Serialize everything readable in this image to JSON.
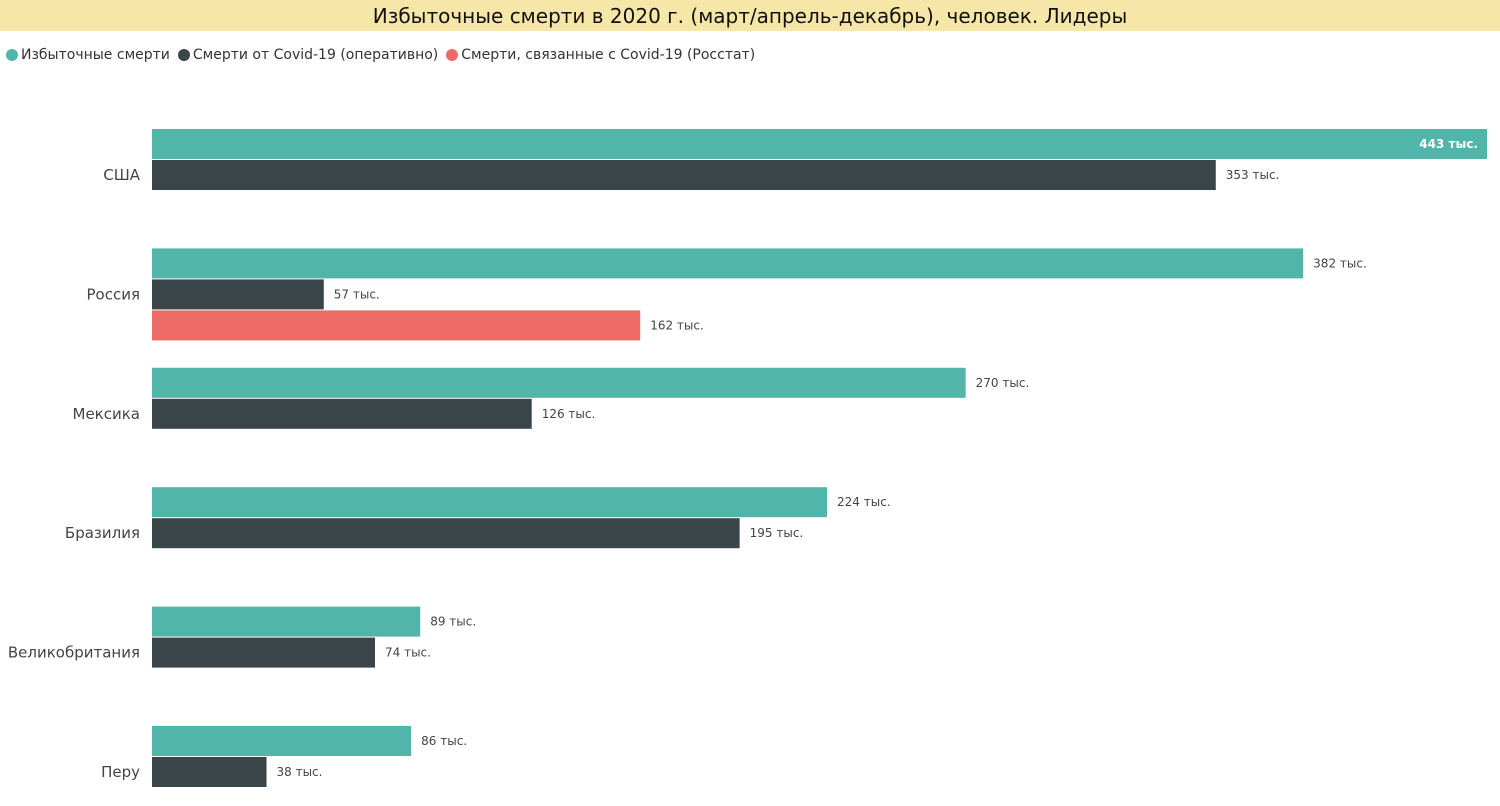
{
  "colors": {
    "excess": "#52b5aa",
    "covid_operational": "#394548",
    "covid_rosstat": "#ec6b65",
    "title_background": "#f6e6a8"
  },
  "chart_data": {
    "type": "bar",
    "orientation": "horizontal",
    "title": "Избыточные смерти в 2020 г. (март/апрель-декабрь), человек. Лидеры",
    "xlabel": "",
    "ylabel": "",
    "xlim": [
      0,
      443000
    ],
    "grid": false,
    "legend_position": "top-left",
    "categories": [
      "США",
      "Россия",
      "Мексика",
      "Бразилия",
      "Великобритания",
      "Перу"
    ],
    "series": [
      {
        "name": "Избыточные смерти",
        "color_key": "excess",
        "values": [
          443000,
          382000,
          270000,
          224000,
          89000,
          86000
        ],
        "labels": [
          "443 тыс.",
          "382 тыс.",
          "270 тыс.",
          "224 тыс.",
          "89 тыс.",
          "86 тыс."
        ]
      },
      {
        "name": "Смерти от Covid-19 (оперативно)",
        "color_key": "covid_operational",
        "values": [
          353000,
          57000,
          126000,
          195000,
          74000,
          38000
        ],
        "labels": [
          "353 тыс.",
          "57 тыс.",
          "126 тыс.",
          "195 тыс.",
          "74 тыс.",
          "38 тыс."
        ]
      },
      {
        "name": "Смерти, связанные с Covid-19 (Росстат)",
        "color_key": "covid_rosstat",
        "values": [
          null,
          162000,
          null,
          null,
          null,
          null
        ],
        "labels": [
          null,
          "162 тыс.",
          null,
          null,
          null,
          null
        ]
      }
    ]
  }
}
